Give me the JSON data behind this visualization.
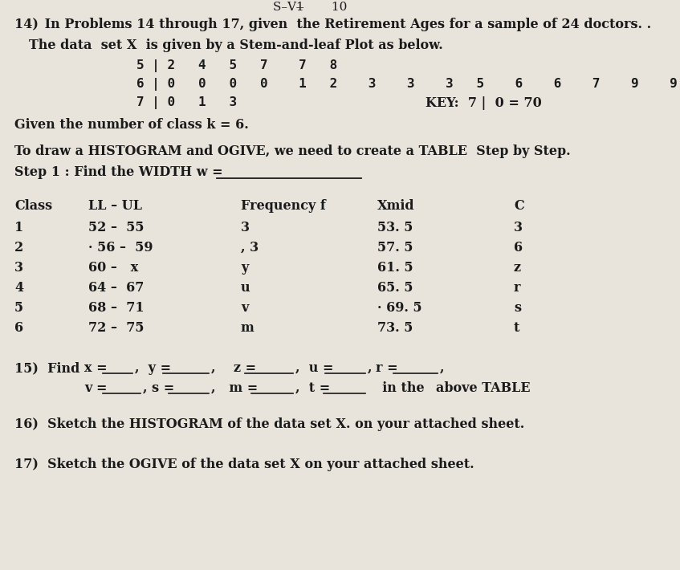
{
  "bg_color": "#e8e4dc",
  "text_color": "#1a1a1a",
  "font_size": 11.5,
  "font_size_small": 10.5,
  "font_family": "DejaVu Serif",
  "header_text": "S–V1̶̶̶̶̶̶       10",
  "q14_bold": "14)  In Problems 14 through 17, given  the Retirement Ages for a sample of 24 doctors. .",
  "q14_line2": "The data  set X  is given by a Stem-and-leaf Plot as below.",
  "stem1": "5 | 2  4  5  7   7  8",
  "stem2": "6 | 0  0  0  0   1  2   3   3   3  5   6   6   7   9   9",
  "stem3_left": "7 | 0  1  3",
  "stem3_key": "KEY:  7 |  0 = 70",
  "given_k": "Given the number of class k = 6.",
  "histogram_intro": "To draw a HISTOGRAM and OGIVE, we need to create a TABLE  Step by Step.",
  "step1": "Step 1 : Find the WIDTH w =",
  "col_headers": [
    "Class",
    "LL – UL",
    "Frequency f",
    "Xmid",
    "C"
  ],
  "table_rows": [
    [
      "1",
      "52 –  55",
      "3",
      "53. 5",
      "3"
    ],
    [
      "2",
      "· 56 –  59",
      ", 3",
      "57. 5",
      "6"
    ],
    [
      "3",
      "60 –   x",
      "y",
      "61. 5",
      "z"
    ],
    [
      "4",
      "64 –  67",
      "u",
      "65. 5",
      "r"
    ],
    [
      "5",
      "68 –  71",
      "v",
      "· 69. 5",
      "s"
    ],
    [
      "6",
      "72 –  75",
      "m",
      "73. 5",
      "t"
    ]
  ],
  "find_q15_line1": "15)  Find    x =",
  "find_q15_line2_prefix": "v =",
  "sketch16": "16)  Sketch the HISTOGRAM of the data set X. on your attached sheet.",
  "sketch17": "17)  Sketch the OGIVE of the data set X on your attached sheet."
}
